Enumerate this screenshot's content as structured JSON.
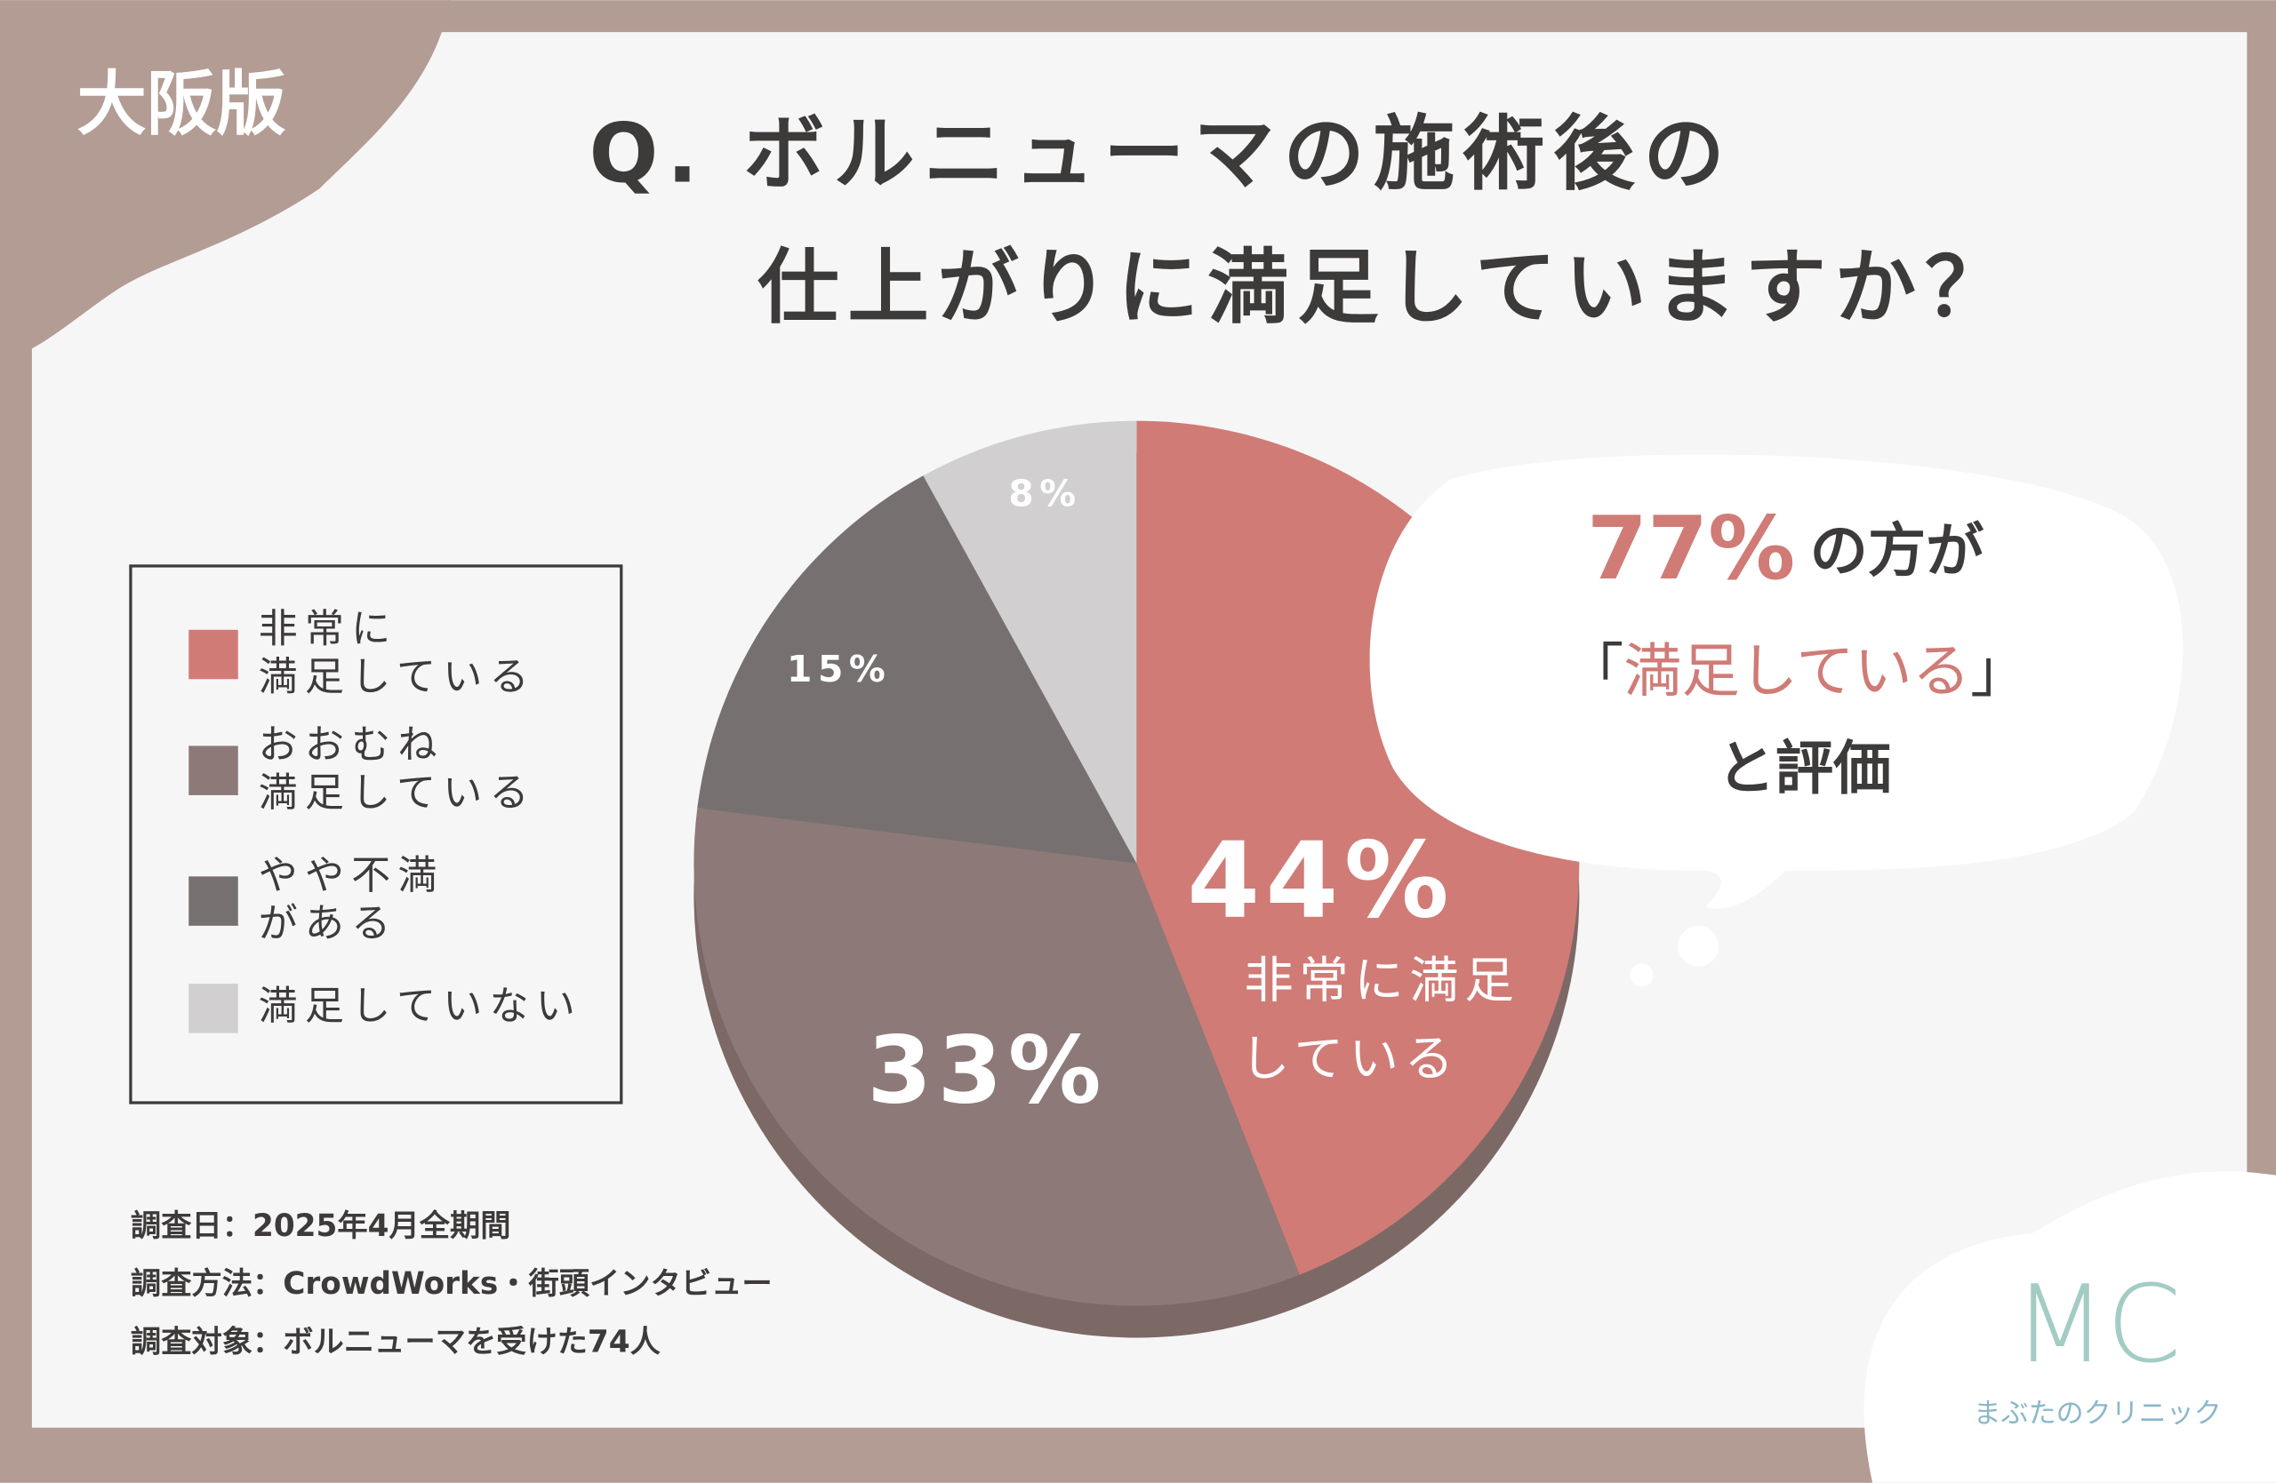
{
  "badge": "大阪版",
  "chart_data": {
    "type": "pie",
    "title": [
      "Q. ボルニューマの施術後の",
      "仕上がりに満足していますか？"
    ],
    "categories": [
      [
        "非常に",
        "満足している"
      ],
      [
        "おおむね",
        "満足している"
      ],
      [
        "やや不満",
        "がある"
      ],
      [
        "満足していない"
      ]
    ],
    "values": [
      44,
      33,
      15,
      8
    ],
    "value_labels": [
      "44%",
      "33%",
      "15%",
      "8%"
    ],
    "colors": [
      "#d07b76",
      "#8d7a78",
      "#767170",
      "#d1cfcf"
    ],
    "slice_annotation": [
      "非常に満足",
      "している"
    ],
    "legend": true
  },
  "callout": {
    "percent": "77%",
    "text": "の方が",
    "open": "「",
    "quote": "満足している",
    "close": "」",
    "suffix": "と評価"
  },
  "notes": [
    "調査日：2025年4月全期間",
    "調査方法：CrowdWorks・街頭インタビュー",
    "調査対象：ボルニューマを受けた74人"
  ],
  "logo": {
    "mark": "MC",
    "name": "まぶたのクリニック"
  }
}
